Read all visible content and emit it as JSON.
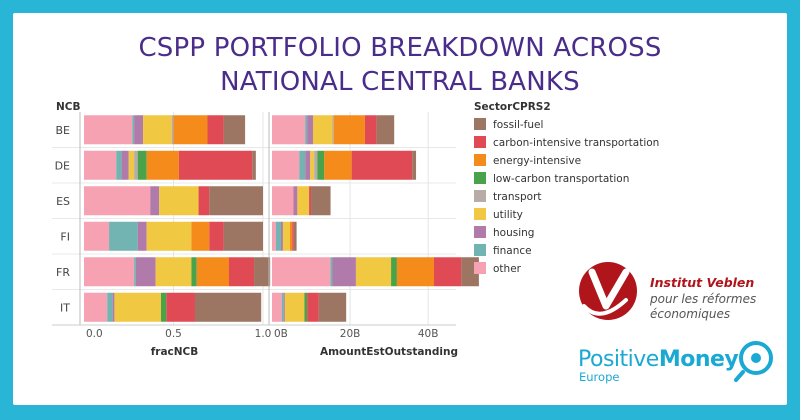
{
  "title_line1": "CSPP PORTFOLIO BREAKDOWN ACROSS",
  "title_line2": "NATIONAL CENTRAL BANKS",
  "row_header": "NCB",
  "legend_title": "SectorCPRS2",
  "logos": {
    "veblen_name": "Institut Veblen",
    "veblen_tagline_1": "pour les réformes",
    "veblen_tagline_2": "économiques",
    "pm_positive": "Positive",
    "pm_money": "Money",
    "pm_region": "Europe"
  },
  "colors": {
    "fossil-fuel": "#9c7563",
    "carbon-intensive transportation": "#e04a55",
    "energy-intensive": "#f48b1a",
    "low-carbon transportation": "#4aa34a",
    "transport": "#b8aca8",
    "utility": "#f1c842",
    "housing": "#b07aaa",
    "finance": "#72b4b2",
    "other": "#f6a2b2"
  },
  "chart_data": [
    {
      "type": "bar",
      "orientation": "horizontal",
      "stacked": true,
      "xlabel": "fracNCB",
      "xticks": [
        "0.0",
        "0.5",
        "1.0"
      ],
      "xlim": [
        0,
        1
      ],
      "categories": [
        "BE",
        "DE",
        "ES",
        "FI",
        "FR",
        "IT"
      ],
      "series": [
        {
          "name": "other",
          "values": [
            0.27,
            0.18,
            0.37,
            0.14,
            0.28,
            0.13
          ]
        },
        {
          "name": "finance",
          "values": [
            0.01,
            0.03,
            0.0,
            0.16,
            0.01,
            0.03
          ]
        },
        {
          "name": "housing",
          "values": [
            0.05,
            0.04,
            0.05,
            0.05,
            0.11,
            0.01
          ]
        },
        {
          "name": "utility",
          "values": [
            0.16,
            0.03,
            0.22,
            0.25,
            0.2,
            0.26
          ]
        },
        {
          "name": "transport",
          "values": [
            0.01,
            0.02,
            0.0,
            0.0,
            0.0,
            0.0
          ]
        },
        {
          "name": "low-carbon transportation",
          "values": [
            0.0,
            0.05,
            0.0,
            0.0,
            0.03,
            0.03
          ]
        },
        {
          "name": "energy-intensive",
          "values": [
            0.19,
            0.18,
            0.0,
            0.1,
            0.18,
            0.0
          ]
        },
        {
          "name": "carbon-intensive transportation",
          "values": [
            0.09,
            0.41,
            0.06,
            0.08,
            0.14,
            0.16
          ]
        },
        {
          "name": "fossil-fuel",
          "values": [
            0.12,
            0.02,
            0.3,
            0.22,
            0.09,
            0.37
          ]
        }
      ]
    },
    {
      "type": "bar",
      "orientation": "horizontal",
      "stacked": true,
      "xlabel": "AmountEstOutstanding",
      "xticks": [
        "0B",
        "20B",
        "40B"
      ],
      "xlim": [
        0,
        52
      ],
      "categories": [
        "BE",
        "DE",
        "ES",
        "FI",
        "FR",
        "IT"
      ],
      "series": [
        {
          "name": "other",
          "values": [
            8.5,
            7.0,
            5.5,
            1.0,
            15.0,
            2.5
          ]
        },
        {
          "name": "finance",
          "values": [
            0.5,
            1.5,
            0.0,
            1.3,
            0.5,
            0.5
          ]
        },
        {
          "name": "housing",
          "values": [
            1.5,
            1.3,
            1.0,
            0.5,
            6.0,
            0.3
          ]
        },
        {
          "name": "utility",
          "values": [
            5.0,
            1.0,
            3.0,
            1.8,
            9.0,
            5.0
          ]
        },
        {
          "name": "transport",
          "values": [
            0.3,
            0.8,
            0.0,
            0.0,
            0.0,
            0.0
          ]
        },
        {
          "name": "low-carbon transportation",
          "values": [
            0.0,
            1.8,
            0.0,
            0.0,
            1.5,
            0.7
          ]
        },
        {
          "name": "energy-intensive",
          "values": [
            8.0,
            7.0,
            0.0,
            0.6,
            9.5,
            0.0
          ]
        },
        {
          "name": "carbon-intensive transportation",
          "values": [
            3.0,
            15.5,
            0.5,
            0.4,
            7.0,
            3.0
          ]
        },
        {
          "name": "fossil-fuel",
          "values": [
            4.5,
            1.0,
            5.0,
            0.7,
            4.5,
            7.0
          ]
        }
      ]
    }
  ]
}
